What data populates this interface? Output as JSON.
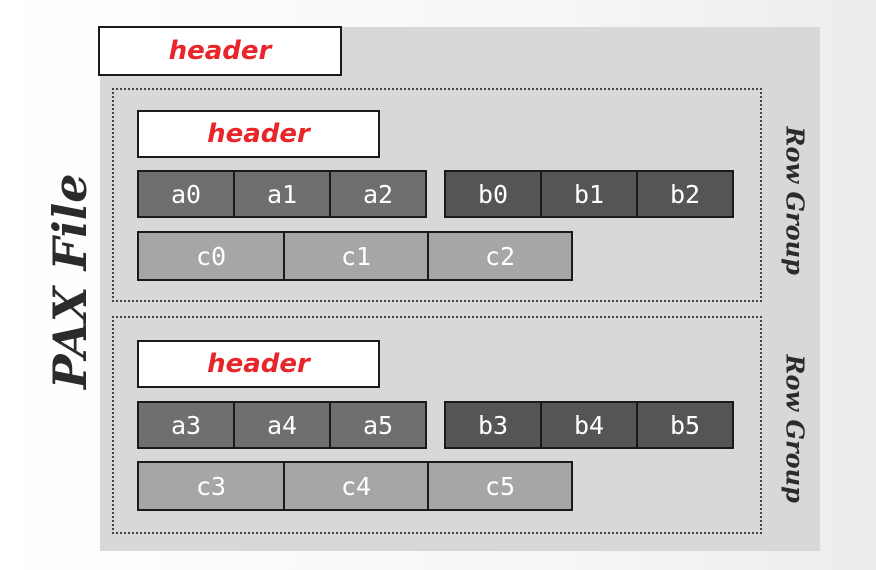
{
  "file_label": "PAX File",
  "file_header": "header",
  "row_groups": [
    {
      "label": "Row Group",
      "header": "header",
      "a": [
        "a0",
        "a1",
        "a2"
      ],
      "b": [
        "b0",
        "b1",
        "b2"
      ],
      "c": [
        "c0",
        "c1",
        "c2"
      ]
    },
    {
      "label": "Row Group",
      "header": "header",
      "a": [
        "a3",
        "a4",
        "a5"
      ],
      "b": [
        "b3",
        "b4",
        "b5"
      ],
      "c": [
        "c3",
        "c4",
        "c5"
      ]
    }
  ],
  "colors": {
    "header_text": "#e8262a",
    "column_a": "#6f6f6f",
    "column_b": "#555555",
    "column_c": "#a6a6a6",
    "file_background": "#d8d8d8"
  }
}
